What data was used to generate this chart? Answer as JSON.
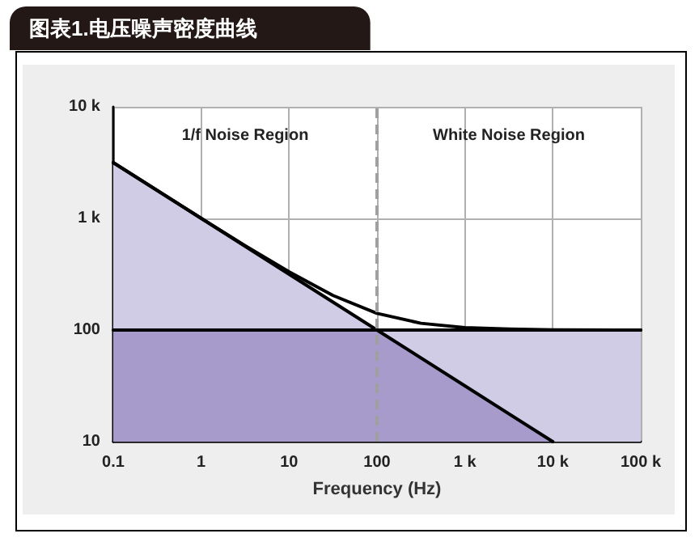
{
  "chart_data": {
    "type": "line",
    "title": "图表1.电压噪声密度曲线",
    "xlabel": "Frequency (Hz)",
    "x": [
      0.1,
      1,
      10,
      100,
      1000,
      10000,
      100000
    ],
    "series": [
      {
        "type": "area",
        "color": "#d0cce6",
        "values": [
          3162,
          1000,
          316,
          100,
          100,
          100,
          100
        ]
      },
      {
        "type": "area",
        "color": "#a79bcb",
        "values": [
          100,
          100,
          100,
          100,
          31.6,
          10,
          null
        ]
      },
      {
        "color": "#000000",
        "values": [
          3162,
          1000,
          316,
          100,
          31.6,
          10,
          null
        ]
      },
      {
        "color": "#000000",
        "values": [
          100,
          100,
          100,
          100,
          100,
          100,
          100
        ]
      },
      {
        "color": "#000000",
        "x": [
          0.1,
          1,
          3.16,
          10,
          31.6,
          100,
          316,
          1000,
          3162,
          10000,
          100000
        ],
        "values": [
          3164,
          1005,
          571,
          332,
          204,
          141,
          115,
          105,
          102,
          100.5,
          100
        ]
      }
    ],
    "xlim": [
      0.1,
      100000
    ],
    "ylim": [
      10,
      10000
    ],
    "xticks": [
      0.1,
      1,
      10,
      100,
      {
        "value": 1000,
        "label": "1 k"
      },
      {
        "value": 10000,
        "label": "10 k"
      },
      {
        "value": 100000,
        "label": "100 k"
      }
    ],
    "yticks": [
      10,
      100,
      {
        "value": 1000,
        "label": "1 k"
      },
      {
        "value": 10000,
        "label": "10 k"
      }
    ],
    "log": "xy",
    "grid": true,
    "marker": "none",
    "ref_lines": [
      {
        "axis": "x",
        "value": 100,
        "color": "#a0a0a0",
        "line_style": "dashed"
      }
    ],
    "annotations": [
      "1/f Noise Region",
      "White Noise Region"
    ]
  }
}
